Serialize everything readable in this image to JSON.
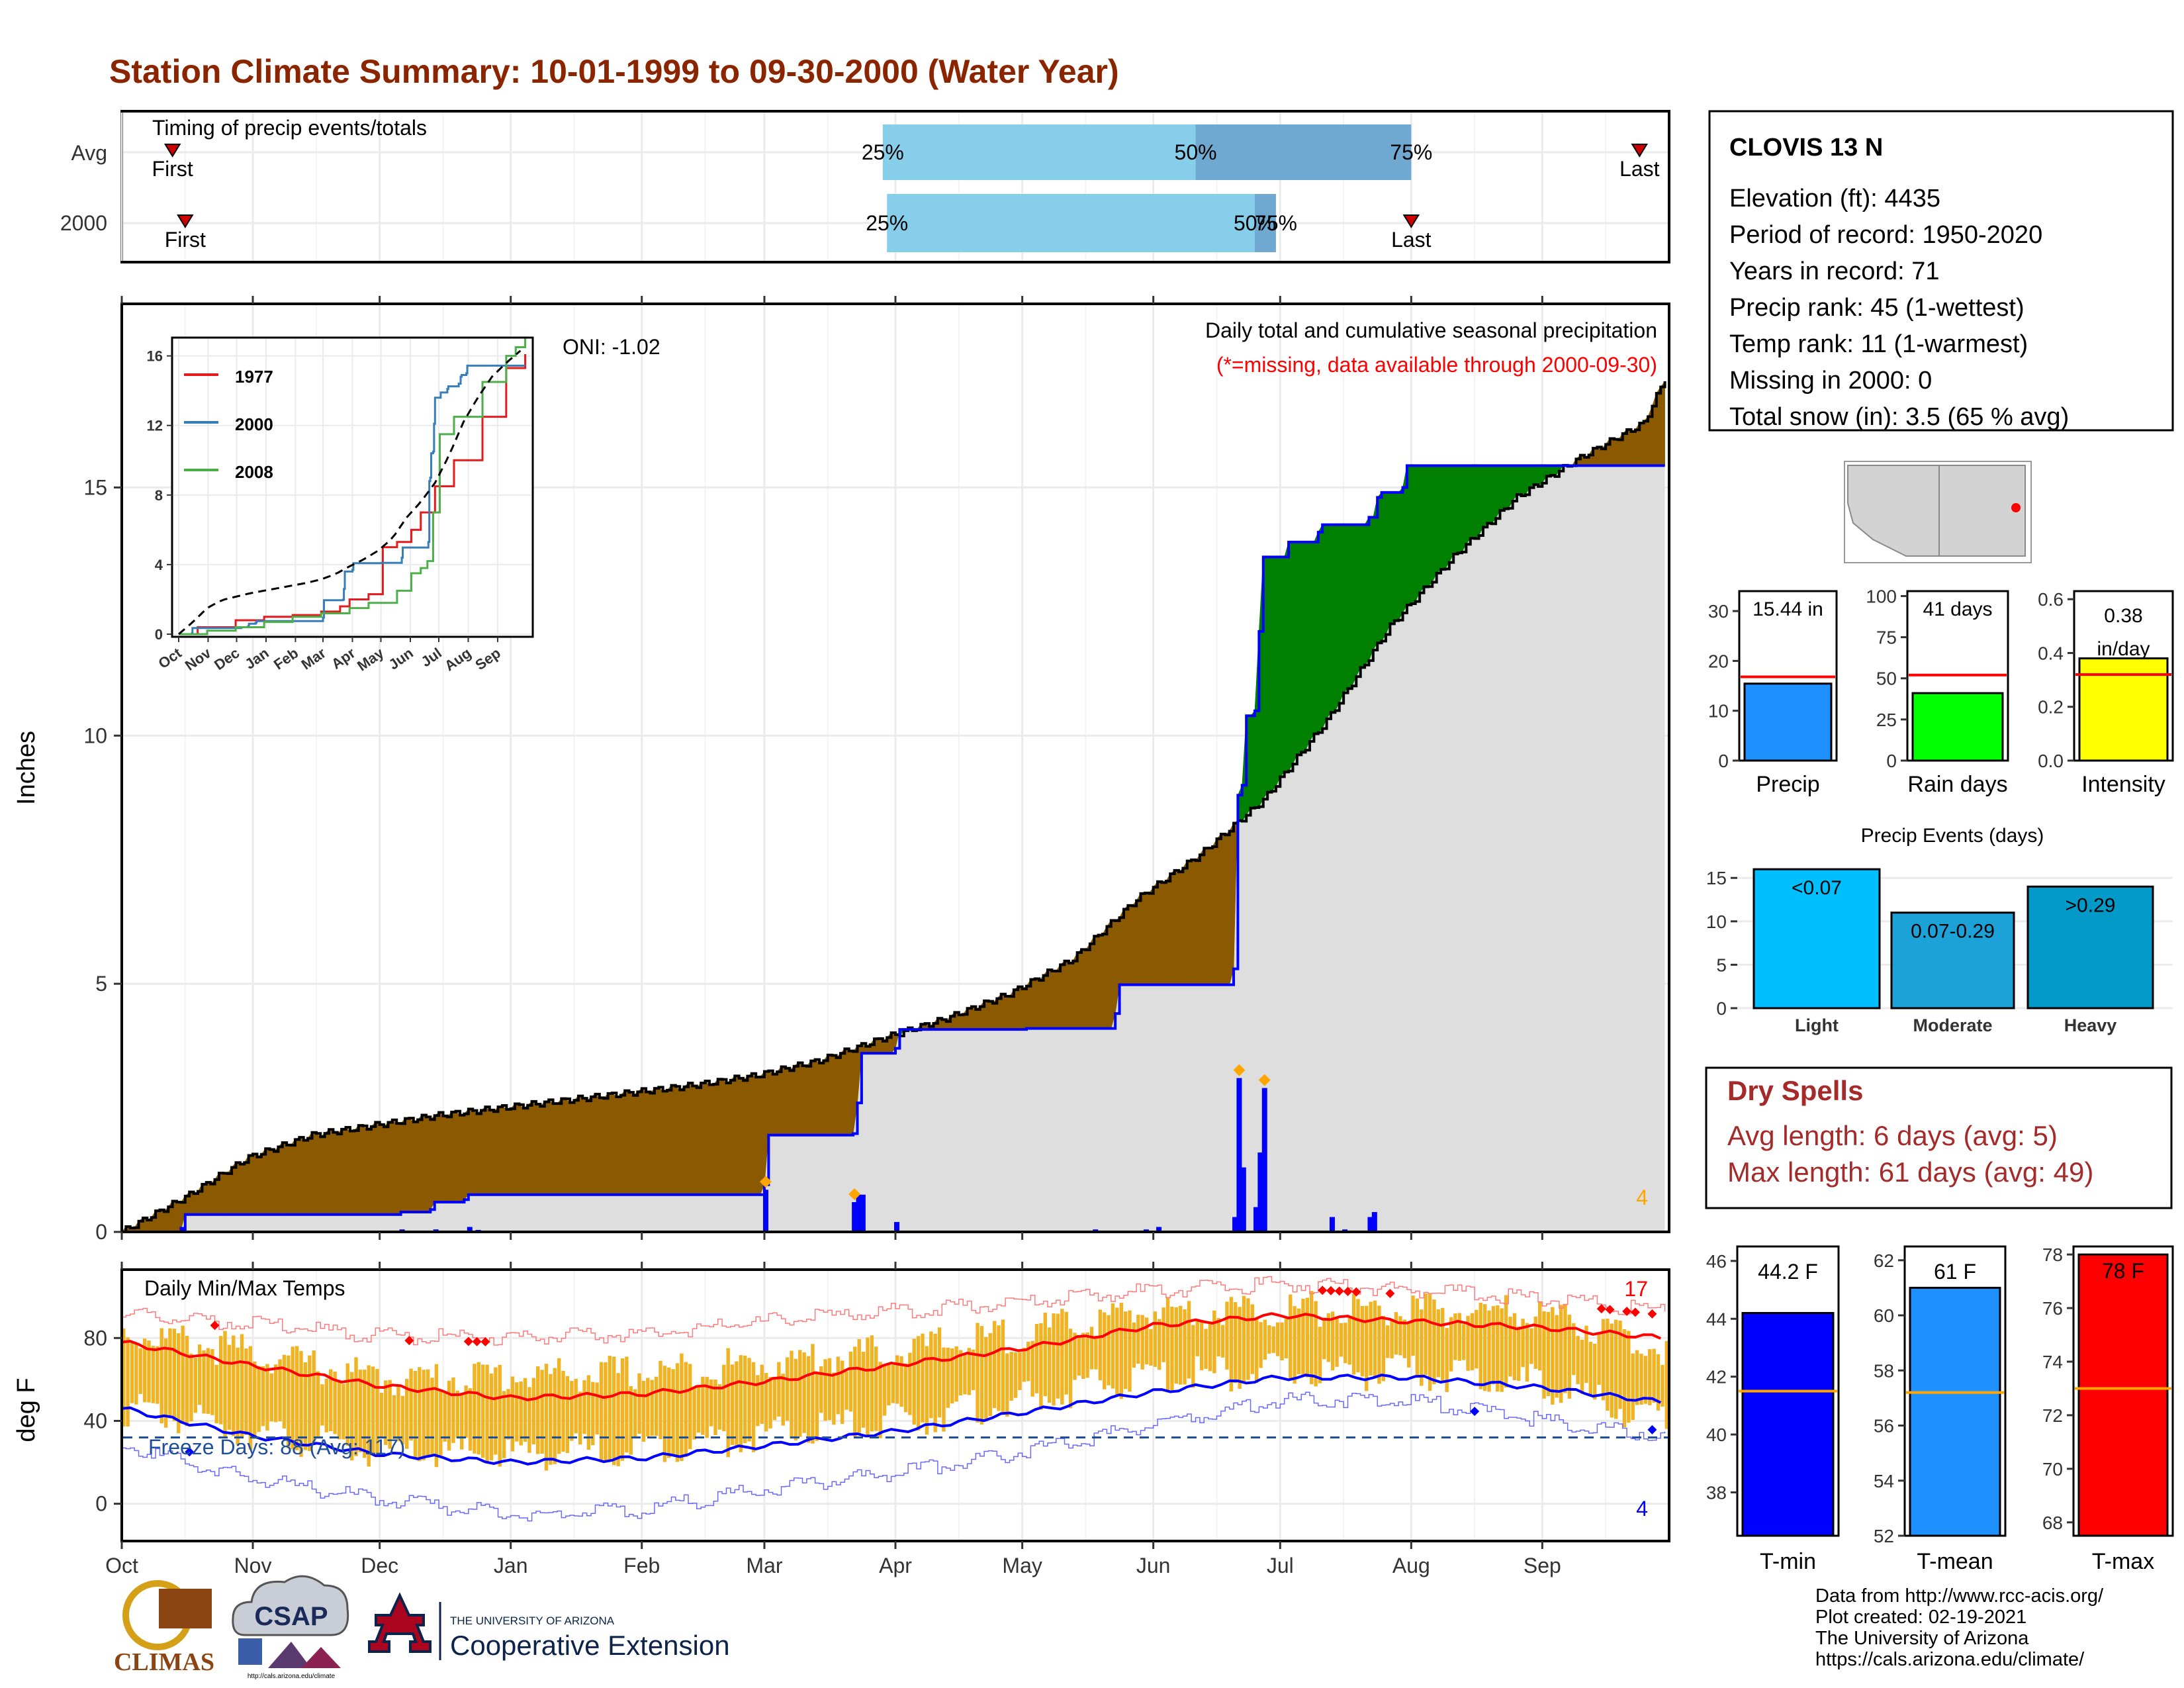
{
  "title": "Station Climate Summary: 10-01-1999 to 09-30-2000 (Water Year)",
  "timing": {
    "label": "Timing of precip events/totals",
    "rows": [
      {
        "name": "Avg",
        "first": "First",
        "last": "Last",
        "p25": "25%",
        "p50": "50%",
        "p75": "75%"
      },
      {
        "name": "2000",
        "first": "First",
        "last": "Last",
        "p25": "25%",
        "p50": "50%",
        "p75": "75%"
      }
    ],
    "avg": {
      "first_day": 12,
      "p25_day": 180,
      "p50_day": 254,
      "p75_day": 305,
      "last_day": 359
    },
    "y2000": {
      "first_day": 15,
      "p25_day": 181,
      "p50_day": 268,
      "p75_day": 273,
      "last_day": 305
    }
  },
  "station": {
    "name": "CLOVIS 13 N",
    "lines": [
      "Elevation (ft): 4435",
      "Period of record: 1950-2020",
      "Years in record: 71",
      "Precip rank: 45 (1-wettest)",
      "Temp rank: 11 (1-warmest)",
      "Missing in 2000: 0",
      "Total snow (in): 3.5 (65 % avg)"
    ]
  },
  "precip_panel": {
    "ylabel": "Inches",
    "oni": "ONI: -1.02",
    "note1": "Daily total and cumulative seasonal precipitation",
    "note2": "(*=missing, data available through 2000-09-30)",
    "corner_count": "4",
    "yticks": [
      "0",
      "5",
      "10",
      "15"
    ],
    "months": [
      "Oct",
      "Nov",
      "Dec",
      "Jan",
      "Feb",
      "Mar",
      "Apr",
      "May",
      "Jun",
      "Jul",
      "Aug",
      "Sep"
    ]
  },
  "inset": {
    "yticks": [
      "0",
      "4",
      "8",
      "12",
      "16"
    ],
    "months": [
      "Oct",
      "Nov",
      "Dec",
      "Jan",
      "Feb",
      "Mar",
      "Apr",
      "May",
      "Jun",
      "Jul",
      "Aug",
      "Sep"
    ],
    "legend": [
      {
        "name": "1977",
        "color": "#e41a1c"
      },
      {
        "name": "2000",
        "color": "#377eb8"
      },
      {
        "name": "2008",
        "color": "#4daf4a"
      }
    ]
  },
  "temp_panel": {
    "ylabel": "deg F",
    "label": "Daily Min/Max Temps",
    "freeze": "Freeze Days: 88 (Avg: 117)",
    "count_hot": "17",
    "count_cold": "4",
    "yticks": [
      "0",
      "40",
      "80"
    ]
  },
  "summary_bars": [
    {
      "label": "Precip",
      "value_text": "15.44 in",
      "value": 15.44,
      "avg": 16.8,
      "ymax": 34,
      "ticks": [
        "0",
        "10",
        "20",
        "30"
      ],
      "color": "#1e90ff"
    },
    {
      "label": "Rain days",
      "value_text": "41 days",
      "value": 41,
      "avg": 52,
      "ymax": 103,
      "ticks": [
        "0",
        "25",
        "50",
        "75",
        "100"
      ],
      "color": "#00ff00"
    },
    {
      "label": "Intensity",
      "value_text": "0.38 in/day",
      "value": 0.38,
      "avg": 0.32,
      "ymax": 0.63,
      "ticks": [
        "0.0",
        "0.2",
        "0.4",
        "0.6"
      ],
      "color": "#ffff00"
    }
  ],
  "events": {
    "title": "Precip Events (days)",
    "ticks": [
      "0",
      "5",
      "10",
      "15"
    ],
    "bars": [
      {
        "name": "Light",
        "range": "<0.07",
        "value": 16,
        "color": "#00bfff"
      },
      {
        "name": "Moderate",
        "range": "0.07-0.29",
        "value": 11,
        "color": "#1da2d8"
      },
      {
        "name": "Heavy",
        "range": ">0.29",
        "value": 14,
        "color": "#0399c8"
      }
    ]
  },
  "dry_spells": {
    "title": "Dry Spells",
    "avg": "Avg length: 6 days (avg: 5)",
    "max": "Max length: 61 days (avg: 49)",
    "color": "#a52a2a"
  },
  "temp_bars": [
    {
      "label": "T-min",
      "value_text": "44.2 F",
      "value": 44.2,
      "avg": 41.5,
      "ymin": 36.5,
      "ymax": 46.5,
      "ticks": [
        "38",
        "40",
        "42",
        "44",
        "46"
      ],
      "color": "#0000ff"
    },
    {
      "label": "T-mean",
      "value_text": "61 F",
      "value": 61,
      "avg": 57.2,
      "ymin": 52,
      "ymax": 62.5,
      "ticks": [
        "52",
        "54",
        "56",
        "58",
        "60",
        "62"
      ],
      "color": "#1e90ff"
    },
    {
      "label": "T-max",
      "value_text": "78 F",
      "value": 78,
      "avg": 73,
      "ymin": 67.5,
      "ymax": 78.3,
      "ticks": [
        "68",
        "70",
        "72",
        "74",
        "76",
        "78"
      ],
      "color": "#ff0000"
    }
  ],
  "credits": [
    "Data from http://www.rcc-acis.org/",
    "Plot created: 02-19-2021",
    "The University of Arizona",
    "https://cals.arizona.edu/climate/"
  ],
  "logos": {
    "climas": "CLIMAS",
    "csap": "CSAP",
    "ua_small": "THE UNIVERSITY OF ARIZONA",
    "ua_big": "Cooperative Extension",
    "csap_url": "http://cals.arizona.edu/climate"
  },
  "chart_data": [
    {
      "type": "area",
      "title": "Daily total and cumulative seasonal precipitation",
      "ylabel": "Inches",
      "ylim": [
        0,
        18.7
      ],
      "x_unit": "day of water year (0 = Oct 1, 1999)",
      "series": [
        {
          "name": "2000",
          "x": [
            0,
            14,
            14.5,
            65,
            66,
            73,
            74,
            81,
            82,
            152,
            153,
            173,
            174,
            175,
            183,
            184,
            214,
            215,
            235,
            236,
            263,
            264,
            265,
            266,
            268,
            269,
            270,
            275,
            276,
            283,
            284,
            290,
            291,
            295,
            296,
            297,
            298,
            303,
            304,
            365
          ],
          "y": [
            0,
            0.05,
            0.35,
            0.35,
            0.4,
            0.45,
            0.6,
            0.65,
            0.75,
            0.95,
            1.95,
            1.98,
            2.6,
            3.6,
            3.7,
            4.08,
            4.1,
            4.1,
            4.4,
            4.98,
            5.3,
            8.8,
            9.0,
            10.4,
            10.5,
            12.1,
            13.6,
            13.6,
            13.9,
            14.1,
            14.25,
            14.25,
            14.25,
            14.4,
            14.4,
            14.8,
            14.9,
            15.0,
            15.44,
            15.44
          ]
        }
      ],
      "average_cumulative": {
        "x": [
          0,
          15,
          30,
          45,
          60,
          75,
          90,
          105,
          120,
          135,
          150,
          165,
          180,
          195,
          210,
          225,
          240,
          255,
          270,
          285,
          300,
          315,
          330,
          345,
          360,
          365
        ],
        "y": [
          0,
          0.7,
          1.5,
          1.95,
          2.15,
          2.35,
          2.5,
          2.65,
          2.8,
          2.95,
          3.15,
          3.45,
          3.9,
          4.3,
          4.8,
          5.5,
          6.7,
          7.6,
          8.7,
          10.3,
          12.2,
          13.6,
          14.8,
          15.6,
          16.3,
          17.2
        ]
      },
      "daily": {
        "x": [
          14,
          66,
          74,
          82,
          84,
          152,
          173,
          174,
          175,
          183,
          230,
          242,
          245,
          263,
          264,
          265,
          268,
          269,
          270,
          286,
          289,
          295,
          296
        ],
        "y": [
          0.1,
          0.05,
          0.05,
          0.1,
          0.04,
          0.85,
          0.6,
          0.75,
          0.75,
          0.2,
          0.05,
          0.05,
          0.1,
          0.3,
          3.1,
          1.3,
          0.5,
          1.6,
          2.9,
          0.3,
          0.05,
          0.3,
          0.4
        ]
      }
    },
    {
      "type": "line",
      "title": "Daily Min/Max Temps",
      "ylabel": "deg F",
      "ylim": [
        -18,
        113
      ],
      "series": [
        {
          "name": "avg max",
          "x": [
            0,
            30,
            61,
            92,
            123,
            152,
            183,
            213,
            244,
            274,
            305,
            336,
            365
          ],
          "y": [
            78,
            67,
            57,
            51,
            53,
            59,
            67,
            75,
            86,
            91,
            88,
            85,
            80
          ]
        },
        {
          "name": "avg min",
          "x": [
            0,
            30,
            61,
            92,
            123,
            152,
            183,
            213,
            244,
            274,
            305,
            336,
            365
          ],
          "y": [
            46,
            33,
            24,
            20,
            22,
            28,
            35,
            44,
            54,
            61,
            61,
            56,
            49
          ]
        },
        {
          "name": "record high",
          "x": [
            0,
            30,
            61,
            92,
            123,
            152,
            183,
            213,
            244,
            274,
            305,
            336,
            365
          ],
          "y": [
            91,
            87,
            81,
            80,
            82,
            88,
            93,
            97,
            103,
            106,
            103,
            99,
            93
          ]
        },
        {
          "name": "record low",
          "x": [
            0,
            30,
            61,
            92,
            123,
            152,
            183,
            213,
            244,
            274,
            305,
            336,
            365
          ],
          "y": [
            28,
            12,
            2,
            -5,
            -3,
            7,
            15,
            25,
            38,
            50,
            50,
            40,
            33
          ]
        },
        {
          "name": "daily max 2000",
          "x": [
            0,
            30,
            61,
            92,
            123,
            152,
            183,
            213,
            244,
            274,
            305,
            336,
            365
          ],
          "y": [
            83,
            73,
            60,
            62,
            63,
            68,
            74,
            82,
            93,
            94,
            93,
            92,
            75
          ]
        },
        {
          "name": "daily min 2000",
          "x": [
            0,
            30,
            61,
            92,
            123,
            152,
            183,
            213,
            244,
            274,
            305,
            336,
            365
          ],
          "y": [
            46,
            35,
            24,
            24,
            27,
            33,
            40,
            50,
            62,
            64,
            63,
            58,
            39
          ]
        }
      ],
      "freeze_line": 32
    }
  ]
}
